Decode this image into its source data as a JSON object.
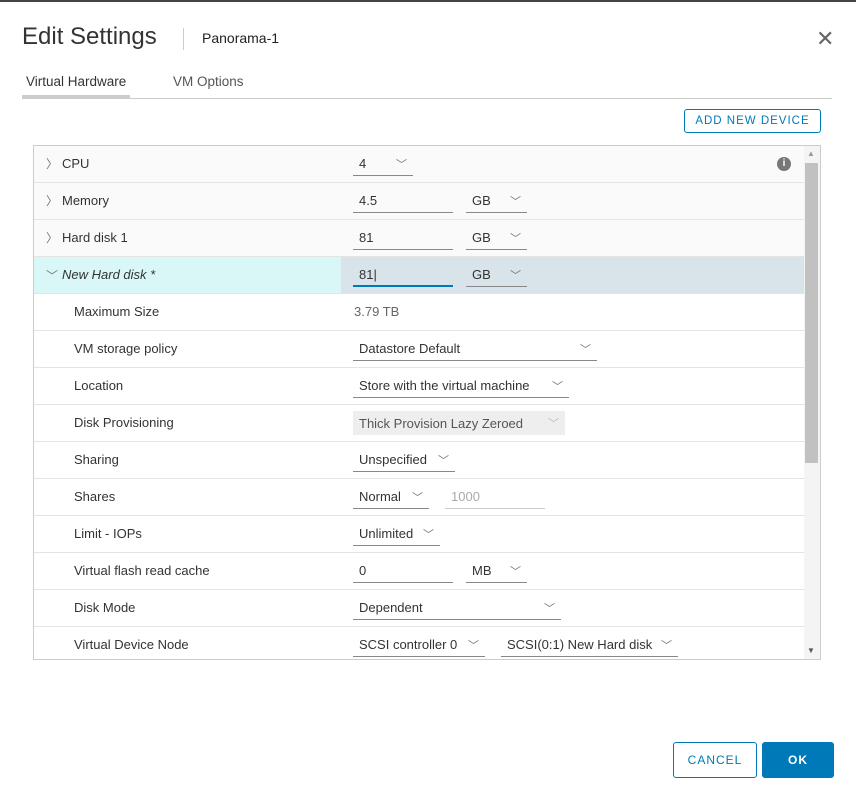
{
  "dialog": {
    "title": "Edit Settings",
    "vm_name": "Panorama-1",
    "close_icon": "close-icon"
  },
  "tabs": [
    {
      "label": "Virtual Hardware",
      "active": true
    },
    {
      "label": "VM Options",
      "active": false
    }
  ],
  "add_device_label": "ADD NEW DEVICE",
  "rows": {
    "cpu": {
      "label": "CPU",
      "value": "4"
    },
    "memory": {
      "label": "Memory",
      "value": "4.5",
      "unit": "GB"
    },
    "hd1": {
      "label": "Hard disk 1",
      "value": "81",
      "unit": "GB"
    },
    "newhd": {
      "label": "New Hard disk *",
      "value": "81",
      "unit": "GB"
    },
    "maxsize": {
      "label": "Maximum Size",
      "value": "3.79 TB"
    },
    "policy": {
      "label": "VM storage policy",
      "value": "Datastore Default"
    },
    "location": {
      "label": "Location",
      "value": "Store with the virtual machine"
    },
    "provisioning": {
      "label": "Disk Provisioning",
      "value": "Thick Provision Lazy Zeroed"
    },
    "sharing": {
      "label": "Sharing",
      "value": "Unspecified"
    },
    "shares": {
      "label": "Shares",
      "value": "Normal",
      "number": "1000"
    },
    "limit": {
      "label": "Limit - IOPs",
      "value": "Unlimited"
    },
    "flash": {
      "label": "Virtual flash read cache",
      "value": "0",
      "unit": "MB"
    },
    "diskmode": {
      "label": "Disk Mode",
      "value": "Dependent"
    },
    "node": {
      "label": "Virtual Device Node",
      "controller": "SCSI controller 0",
      "slot": "SCSI(0:1) New Hard disk"
    }
  },
  "footer": {
    "cancel": "CANCEL",
    "ok": "OK"
  },
  "colors": {
    "accent": "#0079b8",
    "selected_left": "#d9f7f7",
    "selected_right": "#d9e4ea"
  }
}
